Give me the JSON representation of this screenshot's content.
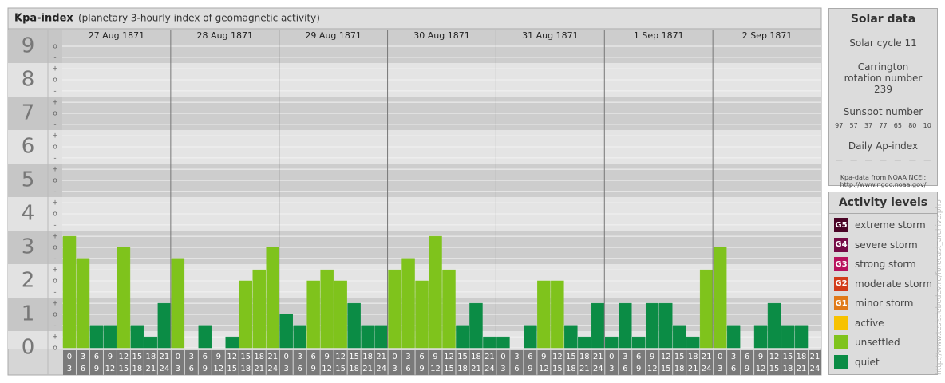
{
  "chart_data": {
    "type": "bar",
    "title": "Kpa-index",
    "subtitle": "(planetary 3-hourly index of geomagnetic activity)",
    "categories": [
      "27 Aug 1871",
      "28 Aug 1871",
      "29 Aug 1871",
      "30 Aug 1871",
      "31 Aug 1871",
      "1 Sep 1871",
      "2 Sep 1871"
    ],
    "hours": [
      [
        "0",
        "3"
      ],
      [
        "3",
        "6"
      ],
      [
        "6",
        "9"
      ],
      [
        "9",
        "12"
      ],
      [
        "12",
        "15"
      ],
      [
        "15",
        "18"
      ],
      [
        "18",
        "21"
      ],
      [
        "21",
        "24"
      ]
    ],
    "values": [
      [
        3.33,
        2.67,
        0.67,
        0.67,
        3,
        0.67,
        0.33,
        1.33
      ],
      [
        2.67,
        0,
        0.67,
        0,
        0.33,
        2,
        2.33,
        3
      ],
      [
        1,
        0.67,
        2,
        2.33,
        2,
        1.33,
        0.67,
        0.67
      ],
      [
        2.33,
        2.67,
        2,
        3.33,
        2.33,
        0.67,
        1.33,
        0.33
      ],
      [
        0.33,
        0,
        0.67,
        2,
        2,
        0.67,
        0.33,
        1.33
      ],
      [
        0.33,
        1.33,
        0.33,
        1.33,
        1.33,
        0.67,
        0.33,
        2.33
      ],
      [
        3,
        0.67,
        0,
        0.67,
        1.33,
        0.67,
        0.67,
        0
      ]
    ],
    "colors": [
      [
        "#7fc31c",
        "#7fc31c",
        "#0b8c45",
        "#0b8c45",
        "#7fc31c",
        "#0b8c45",
        "#0b8c45",
        "#0b8c45"
      ],
      [
        "#7fc31c",
        "#0b8c45",
        "#0b8c45",
        "#0b8c45",
        "#0b8c45",
        "#7fc31c",
        "#7fc31c",
        "#7fc31c"
      ],
      [
        "#0b8c45",
        "#0b8c45",
        "#7fc31c",
        "#7fc31c",
        "#7fc31c",
        "#0b8c45",
        "#0b8c45",
        "#0b8c45"
      ],
      [
        "#7fc31c",
        "#7fc31c",
        "#7fc31c",
        "#7fc31c",
        "#7fc31c",
        "#0b8c45",
        "#0b8c45",
        "#0b8c45"
      ],
      [
        "#0b8c45",
        "#0b8c45",
        "#0b8c45",
        "#7fc31c",
        "#7fc31c",
        "#0b8c45",
        "#0b8c45",
        "#0b8c45"
      ],
      [
        "#0b8c45",
        "#0b8c45",
        "#0b8c45",
        "#0b8c45",
        "#0b8c45",
        "#0b8c45",
        "#0b8c45",
        "#7fc31c"
      ],
      [
        "#7fc31c",
        "#0b8c45",
        "#0b8c45",
        "#0b8c45",
        "#0b8c45",
        "#0b8c45",
        "#0b8c45",
        "#0b8c45"
      ]
    ],
    "ylim": [
      0,
      9.5
    ],
    "yticks": [
      0,
      1,
      2,
      3,
      4,
      5,
      6,
      7,
      8,
      9
    ],
    "minor_ticks": [
      {
        "value": 0,
        "label": "o"
      },
      {
        "value": 0.33,
        "label": "+"
      },
      {
        "value": 0.67,
        "label": "-"
      },
      {
        "value": 1,
        "label": "o"
      },
      {
        "value": 1.33,
        "label": "+"
      },
      {
        "value": 1.67,
        "label": "-"
      },
      {
        "value": 2,
        "label": "o"
      },
      {
        "value": 2.33,
        "label": "+"
      },
      {
        "value": 2.67,
        "label": "-"
      },
      {
        "value": 3,
        "label": "o"
      },
      {
        "value": 3.33,
        "label": "+"
      },
      {
        "value": 3.67,
        "label": "-"
      },
      {
        "value": 4,
        "label": "o"
      },
      {
        "value": 4.33,
        "label": "+"
      },
      {
        "value": 4.67,
        "label": "-"
      },
      {
        "value": 5,
        "label": "o"
      },
      {
        "value": 5.33,
        "label": "+"
      },
      {
        "value": 5.67,
        "label": "-"
      },
      {
        "value": 6,
        "label": "o"
      },
      {
        "value": 6.33,
        "label": "+"
      },
      {
        "value": 6.67,
        "label": "-"
      },
      {
        "value": 7,
        "label": "o"
      },
      {
        "value": 7.33,
        "label": "+"
      },
      {
        "value": 7.67,
        "label": "-"
      },
      {
        "value": 8,
        "label": "o"
      },
      {
        "value": 8.33,
        "label": "+"
      },
      {
        "value": 8.67,
        "label": "-"
      },
      {
        "value": 9,
        "label": "o"
      }
    ],
    "grid": true
  },
  "solar_data": {
    "title": "Solar data",
    "cycle": "Solar cycle 11",
    "carrington": "Carrington rotation number 239",
    "sunspot_title": "Sunspot number",
    "sunspot_numbers": [
      97,
      57,
      37,
      77,
      65,
      80,
      10
    ],
    "ap_title": "Daily Ap-index",
    "ap_values": [
      "—",
      "—",
      "—",
      "—",
      "—",
      "—",
      "—"
    ],
    "source": "Kpa-data from NOAA NCEI: http://www.ngdc.noaa.gov/"
  },
  "activity_levels": {
    "title": "Activity levels",
    "items": [
      {
        "code": "G5",
        "label": "extreme storm",
        "color": "#4a0426"
      },
      {
        "code": "G4",
        "label": "severe storm",
        "color": "#760b46"
      },
      {
        "code": "G3",
        "label": "strong storm",
        "color": "#b8125e"
      },
      {
        "code": "G2",
        "label": "moderate storm",
        "color": "#d23c1a"
      },
      {
        "code": "G1",
        "label": "minor storm",
        "color": "#e07a18"
      },
      {
        "code": null,
        "label": "active",
        "color": "#f7c200"
      },
      {
        "code": null,
        "label": "unsettled",
        "color": "#7fc31c"
      },
      {
        "code": null,
        "label": "quiet",
        "color": "#0b8c45"
      }
    ]
  },
  "watermark": "http://www.tesis.lebedev.ru/forecast_archive.php"
}
